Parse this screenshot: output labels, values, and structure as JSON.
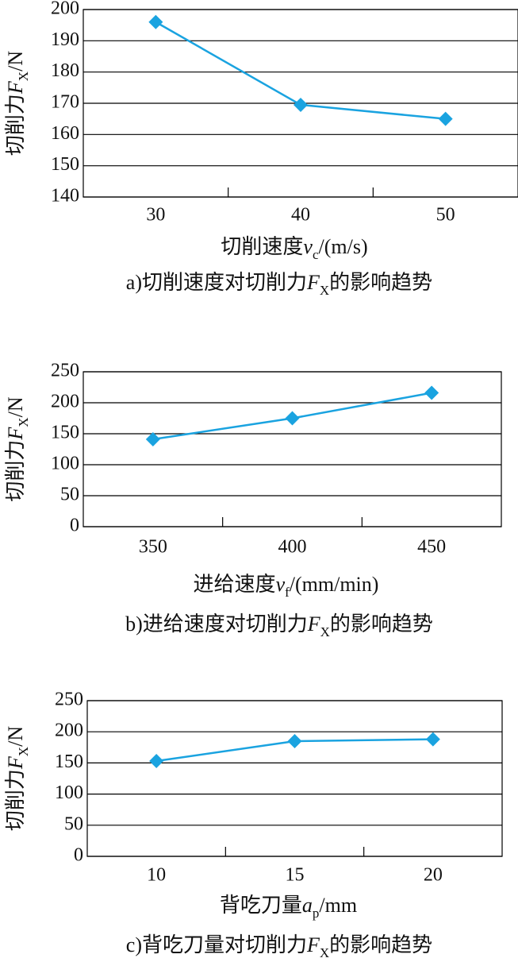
{
  "chart_data": [
    {
      "type": "line",
      "categories": [
        30,
        40,
        50
      ],
      "values": [
        196,
        169.5,
        165
      ],
      "color": "#1aa3e0",
      "ylim": [
        140,
        200
      ],
      "yticks": [
        140,
        150,
        160,
        170,
        180,
        190,
        200
      ],
      "grid": true,
      "y_label": {
        "main": "切削力",
        "var": "F",
        "sub": "X",
        "unit": "/N"
      },
      "x_label": {
        "main": "切削速度",
        "var": "v",
        "sub": "c",
        "unit": "/(m/s)"
      },
      "caption": {
        "main": "a)切削速度对切削力",
        "var": "F",
        "sub": "X",
        "unit": "的影响趋势"
      }
    },
    {
      "type": "line",
      "categories": [
        350,
        400,
        450
      ],
      "values": [
        141,
        175,
        216
      ],
      "color": "#1aa3e0",
      "ylim": [
        0,
        250
      ],
      "yticks": [
        0,
        50,
        100,
        150,
        200,
        250
      ],
      "grid": true,
      "y_label": {
        "main": "切削力",
        "var": "F",
        "sub": "X",
        "unit": "/N"
      },
      "x_label": {
        "main": "进给速度",
        "var": "v",
        "sub": "f",
        "unit": "/(mm/min)"
      },
      "caption": {
        "main": "b)进给速度对切削力",
        "var": "F",
        "sub": "X",
        "unit": "的影响趋势"
      }
    },
    {
      "type": "line",
      "categories": [
        10,
        15,
        20
      ],
      "values": [
        153,
        185,
        188
      ],
      "color": "#1aa3e0",
      "ylim": [
        0,
        250
      ],
      "yticks": [
        0,
        50,
        100,
        150,
        200,
        250
      ],
      "grid": true,
      "y_label": {
        "main": "切削力",
        "var": "F",
        "sub": "X",
        "unit": "/N"
      },
      "x_label": {
        "main": "背吃刀量",
        "var": "a",
        "sub": "p",
        "unit": "/mm"
      },
      "caption": {
        "main": "c)背吃刀量对切削力",
        "var": "F",
        "sub": "X",
        "unit": "的影响趋势"
      }
    }
  ]
}
